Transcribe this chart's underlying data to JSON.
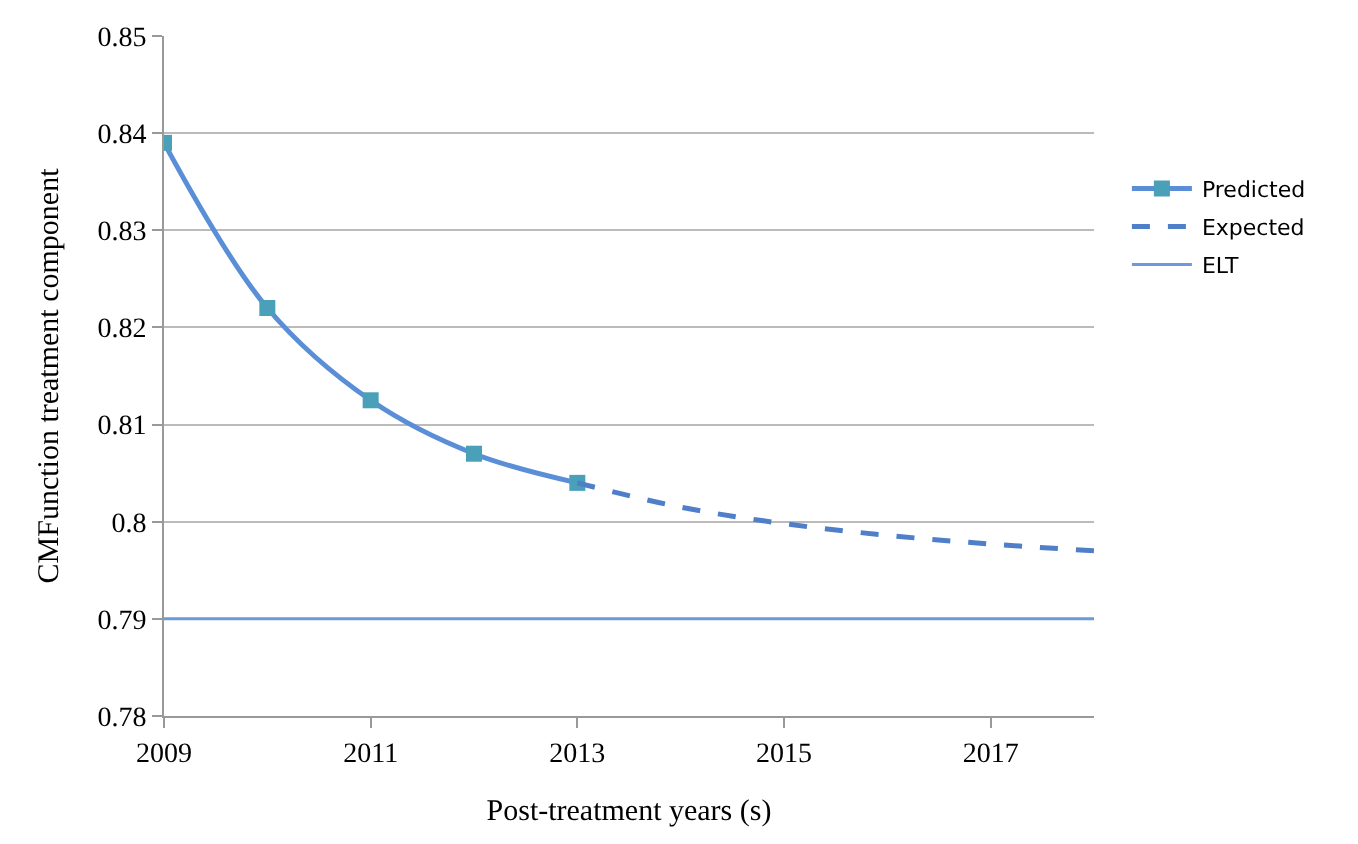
{
  "chart_data": {
    "type": "line",
    "xlabel": "Post-treatment years (s)",
    "ylabel": "CMFunction treatment component",
    "xlim": [
      2009,
      2018
    ],
    "xticks": [
      2009,
      2011,
      2013,
      2015,
      2017
    ],
    "ylim": [
      0.78,
      0.85
    ],
    "yticks": [
      0.78,
      0.79,
      {
        "value": 0.8,
        "label": "0.8"
      },
      0.81,
      0.82,
      0.83,
      0.84,
      0.85
    ],
    "grid": "y",
    "legend": "right",
    "series": [
      {
        "name": "Predicted",
        "color": "#5a8ed6",
        "x": [
          2009,
          2010,
          2011,
          2012,
          2013
        ],
        "values": [
          0.839,
          0.822,
          0.8125,
          0.807,
          0.804
        ],
        "marker": "square",
        "line_style": "solid"
      },
      {
        "name": "Expected",
        "color": "#4f7fc8",
        "x": [
          2013,
          2014,
          2015,
          2016,
          2017,
          2018
        ],
        "values": [
          0.804,
          0.8015,
          0.7998,
          0.7986,
          0.7977,
          0.797
        ],
        "marker": "none",
        "line_style": "dashed"
      },
      {
        "name": "ELT",
        "color": "#6a9bd8",
        "x": [
          2009,
          2018
        ],
        "values": [
          0.79,
          0.79
        ],
        "marker": "none",
        "line_style": "solid"
      }
    ]
  }
}
